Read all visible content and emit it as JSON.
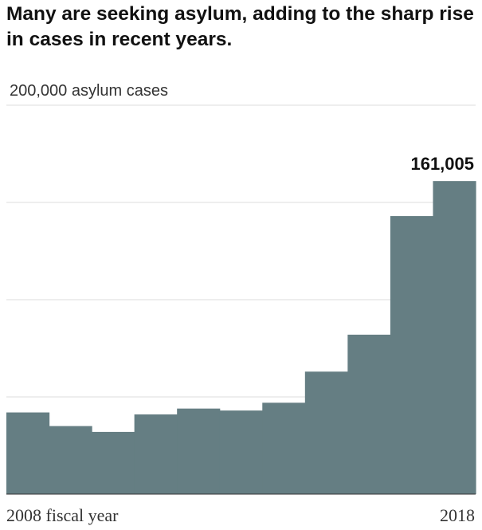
{
  "title": "Many are seeking asylum, adding to the sharp rise in cases in recent years.",
  "chart_data": {
    "type": "area",
    "step": true,
    "title": "Many are seeking asylum, adding to the sharp rise in cases in recent years.",
    "ylabel": "200,000 asylum cases",
    "xlabel_start": "2008 fiscal year",
    "xlabel_end": "2018",
    "x": [
      2008,
      2009,
      2010,
      2011,
      2012,
      2013,
      2014,
      2015,
      2016,
      2017,
      2018
    ],
    "values": [
      42000,
      35000,
      32000,
      41000,
      44000,
      43000,
      47000,
      63000,
      82000,
      143000,
      161005
    ],
    "ylim": [
      0,
      200000
    ],
    "gridlines": [
      50000,
      100000,
      150000,
      200000
    ],
    "grid": true,
    "annotation": {
      "x": 2018,
      "label": "161,005"
    },
    "colors": {
      "area": "#657e83",
      "grid": "#dddddd",
      "baseline": "#333333"
    }
  }
}
